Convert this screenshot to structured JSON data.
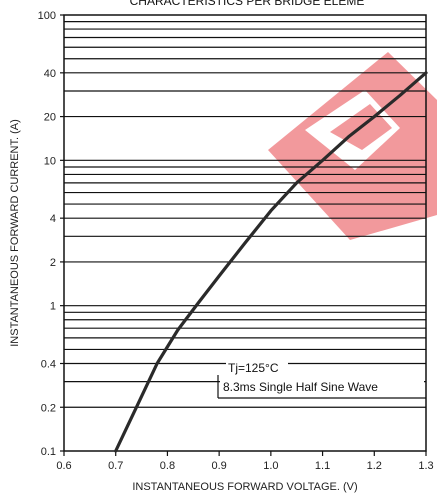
{
  "chart_data": {
    "type": "line",
    "title": "CHARACTERISTICS PER BRIDGE ELEME",
    "xlabel": "INSTANTANEOUS FORWARD VOLTAGE. (V)",
    "ylabel": "INSTANTANEOUS FORWARD CURRENT. (A)",
    "xlim": [
      0.6,
      1.3
    ],
    "ylim": [
      0.1,
      100
    ],
    "y_scale": "log",
    "x_ticks": [
      "0.6",
      "0.7",
      "0.8",
      "0.9",
      "1.0",
      "1.1",
      "1.2",
      "1.3"
    ],
    "y_ticks": [
      "0.1",
      "0.2",
      "0.4",
      "1",
      "2",
      "4",
      "10",
      "20",
      "40",
      "100"
    ],
    "grid": "horizontal",
    "series": [
      {
        "x": [
          0.7,
          0.74,
          0.78,
          0.82,
          0.86,
          0.9,
          0.95,
          1.0,
          1.05,
          1.1,
          1.15,
          1.2,
          1.25,
          1.3
        ],
        "y": [
          0.1,
          0.2,
          0.4,
          0.68,
          1.05,
          1.6,
          2.7,
          4.5,
          7,
          10,
          14.5,
          20,
          28,
          40
        ]
      }
    ],
    "annotations": [
      "Tj=125°C",
      "8.3ms Single Half Sine Wave"
    ],
    "colors": {
      "curve": "#2a2a2a",
      "grid": "#111111",
      "watermark": "#e8474d"
    }
  }
}
